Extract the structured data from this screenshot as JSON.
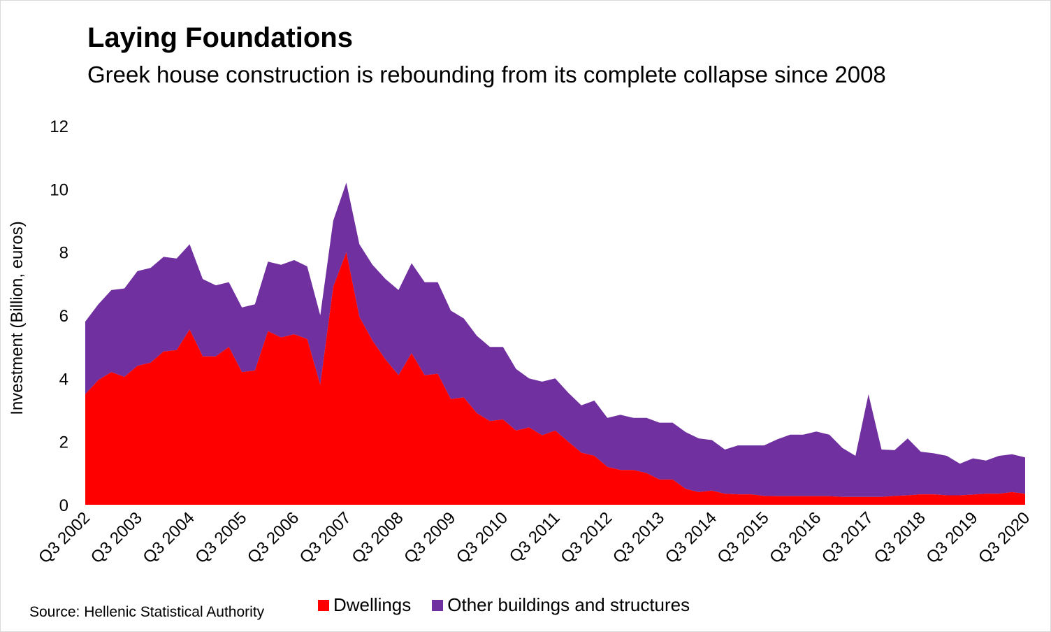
{
  "chart_data": {
    "type": "area",
    "stacked": true,
    "title": "Laying Foundations",
    "subtitle": "Greek house construction is rebounding from its complete collapse since 2008",
    "ylabel": "Investment (Billion, euros)",
    "xlabel": "",
    "ylim": [
      0,
      12
    ],
    "yticks": [
      0,
      2,
      4,
      6,
      8,
      10,
      12
    ],
    "grid": false,
    "legend_position": "bottom",
    "source": "Source: Hellenic Statistical Authority",
    "x_tick_labels": [
      "Q3 2002",
      "Q3 2003",
      "Q3 2004",
      "Q3 2005",
      "Q3 2006",
      "Q3 2007",
      "Q3 2008",
      "Q3 2009",
      "Q3 2010",
      "Q3 2011",
      "Q3 2012",
      "Q3 2013",
      "Q3 2014",
      "Q3 2015",
      "Q3 2016",
      "Q3 2017",
      "Q3 2018",
      "Q3 2019",
      "Q3 2020"
    ],
    "x_start": "Q3 2002",
    "x_end": "Q3 2020",
    "series": [
      {
        "name": "Dwellings",
        "color": "#ff0000",
        "values": [
          3.5,
          3.95,
          4.2,
          4.05,
          4.4,
          4.5,
          4.85,
          4.9,
          5.55,
          4.7,
          4.7,
          5.0,
          4.2,
          4.25,
          5.5,
          5.3,
          5.4,
          5.25,
          3.8,
          6.9,
          8.0,
          5.95,
          5.2,
          4.6,
          4.1,
          4.8,
          4.1,
          4.15,
          3.35,
          3.4,
          2.9,
          2.65,
          2.7,
          2.35,
          2.45,
          2.2,
          2.35,
          2.0,
          1.65,
          1.55,
          1.2,
          1.1,
          1.1,
          1.0,
          0.8,
          0.8,
          0.5,
          0.4,
          0.45,
          0.35,
          0.33,
          0.33,
          0.28,
          0.27,
          0.27,
          0.27,
          0.27,
          0.27,
          0.25,
          0.25,
          0.25,
          0.25,
          0.28,
          0.3,
          0.33,
          0.33,
          0.3,
          0.3,
          0.32,
          0.35,
          0.35,
          0.4,
          0.35
        ]
      },
      {
        "name": "Other buildings and structures",
        "color": "#7030a0",
        "values": [
          2.3,
          2.4,
          2.6,
          2.8,
          3.0,
          3.0,
          3.0,
          2.9,
          2.7,
          2.45,
          2.25,
          2.05,
          2.05,
          2.1,
          2.2,
          2.3,
          2.35,
          2.3,
          2.2,
          2.1,
          2.2,
          2.3,
          2.4,
          2.55,
          2.7,
          2.85,
          2.95,
          2.9,
          2.8,
          2.5,
          2.45,
          2.35,
          2.3,
          1.95,
          1.55,
          1.7,
          1.65,
          1.55,
          1.5,
          1.75,
          1.55,
          1.75,
          1.65,
          1.75,
          1.8,
          1.8,
          1.8,
          1.7,
          1.6,
          1.4,
          1.55,
          1.55,
          1.6,
          1.8,
          1.95,
          1.95,
          2.05,
          1.95,
          1.55,
          1.3,
          3.25,
          1.5,
          1.45,
          1.8,
          1.35,
          1.3,
          1.25,
          1.0,
          1.15,
          1.05,
          1.2,
          1.2,
          1.15
        ]
      }
    ]
  }
}
